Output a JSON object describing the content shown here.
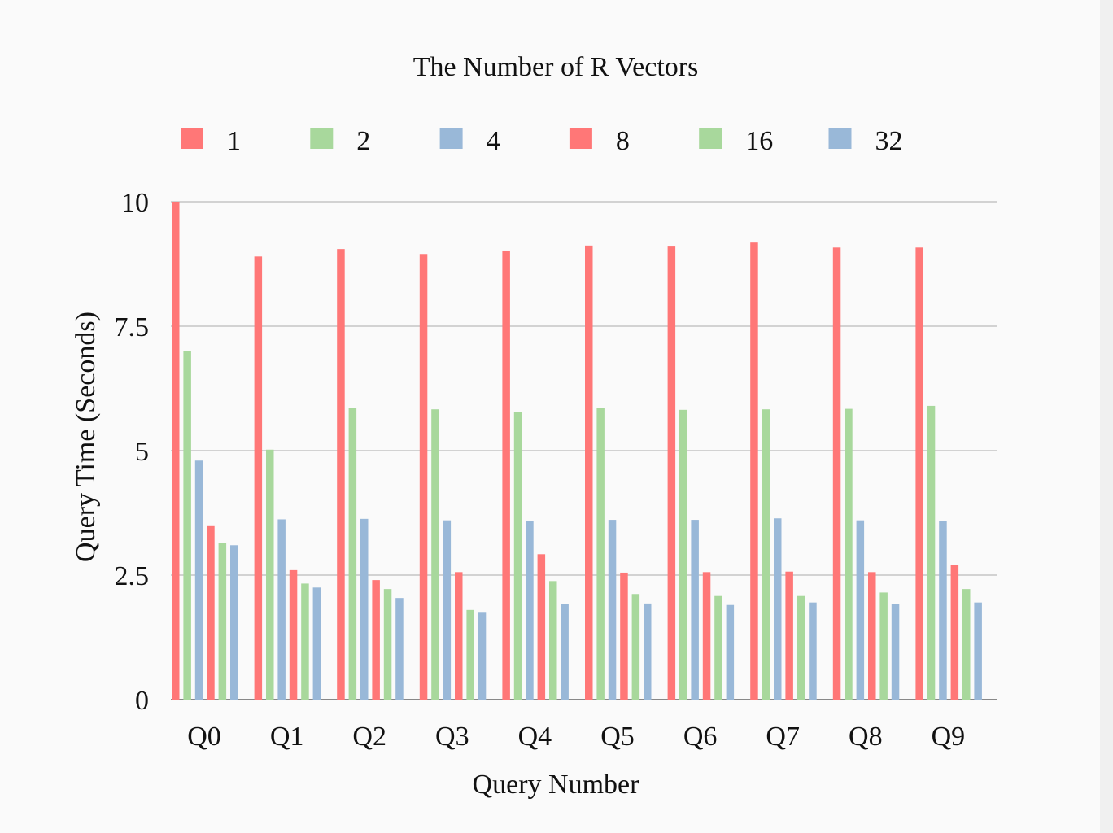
{
  "chart_data": {
    "type": "bar",
    "title": "The Number of R Vectors",
    "xlabel": "Query Number",
    "ylabel": "Query Time (Seconds)",
    "ylim": [
      0,
      10
    ],
    "yticks": [
      "0",
      "2.5",
      "5",
      "7.5",
      "10"
    ],
    "grid": true,
    "legend_position": "top",
    "categories": [
      "Q0",
      "Q1",
      "Q2",
      "Q3",
      "Q4",
      "Q5",
      "Q6",
      "Q7",
      "Q8",
      "Q9"
    ],
    "series": [
      {
        "name": "1",
        "color": "#ff7777",
        "values": [
          10.0,
          8.9,
          9.05,
          8.95,
          9.02,
          9.12,
          9.1,
          9.18,
          9.08,
          9.08
        ]
      },
      {
        "name": "2",
        "color": "#a8d89c",
        "values": [
          7.0,
          5.02,
          5.85,
          5.83,
          5.78,
          5.85,
          5.82,
          5.83,
          5.84,
          5.9
        ]
      },
      {
        "name": "4",
        "color": "#99b8d8",
        "values": [
          4.8,
          3.62,
          3.63,
          3.6,
          3.59,
          3.61,
          3.61,
          3.64,
          3.6,
          3.58
        ]
      },
      {
        "name": "8",
        "color": "#ff7777",
        "values": [
          3.5,
          2.6,
          2.4,
          2.56,
          2.92,
          2.55,
          2.56,
          2.57,
          2.56,
          2.7
        ]
      },
      {
        "name": "16",
        "color": "#a8d89c",
        "values": [
          3.15,
          2.33,
          2.22,
          1.8,
          2.38,
          2.12,
          2.08,
          2.08,
          2.15,
          2.22
        ]
      },
      {
        "name": "32",
        "color": "#99b8d8",
        "values": [
          3.1,
          2.25,
          2.04,
          1.76,
          1.92,
          1.93,
          1.9,
          1.95,
          1.92,
          1.95
        ]
      }
    ]
  }
}
